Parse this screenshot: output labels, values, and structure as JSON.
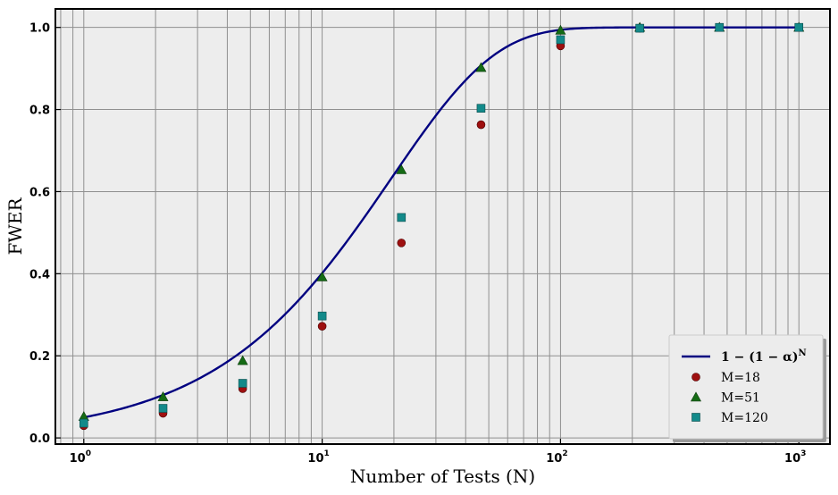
{
  "chart_data": {
    "type": "scatter",
    "title": "",
    "xlabel": "Number of Tests (N)",
    "ylabel": "FWER",
    "xscale": "log",
    "xlim": [
      0.76,
      1350
    ],
    "ylim": [
      -0.015,
      1.045
    ],
    "grid": true,
    "background": "#ededed",
    "legend_position": "lower-right",
    "x_ticks": [
      1,
      10,
      100,
      1000
    ],
    "x_tick_labels": [
      {
        "base": "10",
        "exp": "0"
      },
      {
        "base": "10",
        "exp": "1"
      },
      {
        "base": "10",
        "exp": "2"
      },
      {
        "base": "10",
        "exp": "3"
      }
    ],
    "y_ticks": [
      0.0,
      0.2,
      0.4,
      0.6,
      0.8,
      1.0
    ],
    "y_tick_labels": [
      "0.0",
      "0.2",
      "0.4",
      "0.6",
      "0.8",
      "1.0"
    ],
    "curve": {
      "label": "1 − (1 − α)^N",
      "formula": "1-(1-alpha)^N",
      "alpha": 0.05,
      "color": "#000080"
    },
    "x": [
      1,
      2.15,
      4.64,
      10,
      21.5,
      46.4,
      100,
      215,
      464,
      1000
    ],
    "series": [
      {
        "name": "M=18",
        "marker": "circle",
        "color": "#9e1010",
        "values": [
          0.03,
          0.06,
          0.12,
          0.272,
          0.475,
          0.763,
          0.955,
          0.998,
          1.0,
          1.0
        ]
      },
      {
        "name": "M=51",
        "marker": "triangle",
        "color": "#156b15",
        "values": [
          0.052,
          0.1,
          0.188,
          0.392,
          0.653,
          0.902,
          0.993,
          1.0,
          1.0,
          1.0
        ]
      },
      {
        "name": "M=120",
        "marker": "square",
        "color": "#138a8a",
        "values": [
          0.036,
          0.072,
          0.133,
          0.297,
          0.537,
          0.803,
          0.97,
          0.998,
          1.0,
          1.0
        ]
      }
    ]
  }
}
